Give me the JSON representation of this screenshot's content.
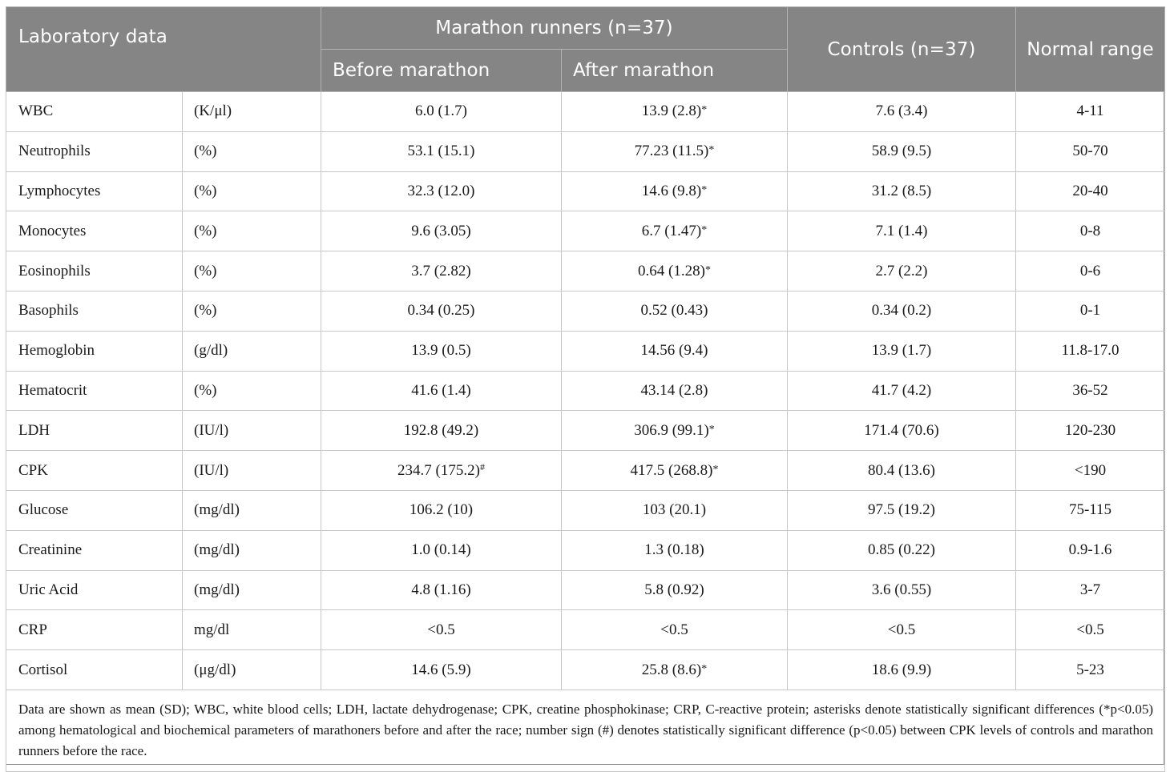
{
  "header": {
    "laboratory_data": "Laboratory data",
    "marathon_runners": "Marathon runners (n=37)",
    "before_marathon": "Before marathon",
    "after_marathon": "After marathon",
    "controls": "Controls (n=37)",
    "normal_range": "Normal range"
  },
  "rows": [
    {
      "name": "WBC",
      "unit": "(K/μl)",
      "before": "6.0 (1.7)",
      "before_mark": "",
      "after": "13.9 (2.8)",
      "after_mark": "*",
      "controls": "7.6 (3.4)",
      "range": "4-11"
    },
    {
      "name": "Neutrophils",
      "unit": "(%)",
      "before": "53.1 (15.1)",
      "before_mark": "",
      "after": "77.23 (11.5)",
      "after_mark": "*",
      "controls": "58.9 (9.5)",
      "range": "50-70"
    },
    {
      "name": "Lymphocytes",
      "unit": "(%)",
      "before": "32.3 (12.0)",
      "before_mark": "",
      "after": "14.6 (9.8)",
      "after_mark": "*",
      "controls": "31.2 (8.5)",
      "range": "20-40"
    },
    {
      "name": "Monocytes",
      "unit": "(%)",
      "before": "9.6 (3.05)",
      "before_mark": "",
      "after": "6.7 (1.47)",
      "after_mark": "*",
      "controls": "7.1 (1.4)",
      "range": "0-8"
    },
    {
      "name": "Eosinophils",
      "unit": "(%)",
      "before": "3.7 (2.82)",
      "before_mark": "",
      "after": "0.64 (1.28)",
      "after_mark": "*",
      "controls": "2.7 (2.2)",
      "range": "0-6"
    },
    {
      "name": "Basophils",
      "unit": "(%)",
      "before": "0.34 (0.25)",
      "before_mark": "",
      "after": "0.52 (0.43)",
      "after_mark": "",
      "controls": "0.34 (0.2)",
      "range": "0-1"
    },
    {
      "name": "Hemoglobin",
      "unit": "(g/dl)",
      "before": "13.9 (0.5)",
      "before_mark": "",
      "after": "14.56 (9.4)",
      "after_mark": "",
      "controls": "13.9 (1.7)",
      "range": "11.8-17.0"
    },
    {
      "name": "Hematocrit",
      "unit": "(%)",
      "before": "41.6 (1.4)",
      "before_mark": "",
      "after": "43.14 (2.8)",
      "after_mark": "",
      "controls": "41.7 (4.2)",
      "range": "36-52"
    },
    {
      "name": "LDH",
      "unit": "(IU/l)",
      "before": "192.8 (49.2)",
      "before_mark": "",
      "after": "306.9 (99.1)",
      "after_mark": "*",
      "controls": "171.4 (70.6)",
      "range": "120-230"
    },
    {
      "name": "CPK",
      "unit": "(IU/l)",
      "before": "234.7 (175.2)",
      "before_mark": "#",
      "after": "417.5 (268.8)",
      "after_mark": "*",
      "controls": "80.4 (13.6)",
      "range": "<190"
    },
    {
      "name": "Glucose",
      "unit": "(mg/dl)",
      "before": "106.2 (10)",
      "before_mark": "",
      "after": "103 (20.1)",
      "after_mark": "",
      "controls": "97.5 (19.2)",
      "range": "75-115"
    },
    {
      "name": "Creatinine",
      "unit": "(mg/dl)",
      "before": "1.0 (0.14)",
      "before_mark": "",
      "after": "1.3 (0.18)",
      "after_mark": "",
      "controls": "0.85 (0.22)",
      "range": "0.9-1.6"
    },
    {
      "name": "Uric Acid",
      "unit": "(mg/dl)",
      "before": "4.8 (1.16)",
      "before_mark": "",
      "after": "5.8 (0.92)",
      "after_mark": "",
      "controls": "3.6 (0.55)",
      "range": "3-7"
    },
    {
      "name": "CRP",
      "unit": "mg/dl",
      "before": "<0.5",
      "before_mark": "",
      "after": "<0.5",
      "after_mark": "",
      "controls": "<0.5",
      "range": "<0.5"
    },
    {
      "name": "Cortisol",
      "unit": "(μg/dl)",
      "before": "14.6 (5.9)",
      "before_mark": "",
      "after": "25.8 (8.6)",
      "after_mark": "*",
      "controls": "18.6 (9.9)",
      "range": "5-23"
    }
  ],
  "footnote": "Data are shown as mean (SD); WBC, white blood cells; LDH, lactate dehydrogenase; CPK, creatine phosphokinase; CRP, C-reactive protein; asterisks denote statistically significant differences (*p<0.05) among hematological and biochemical parameters of marathoners before and after the race; number sign (#) denotes statistically significant difference (p<0.05) between CPK levels of controls and marathon runners before the race."
}
